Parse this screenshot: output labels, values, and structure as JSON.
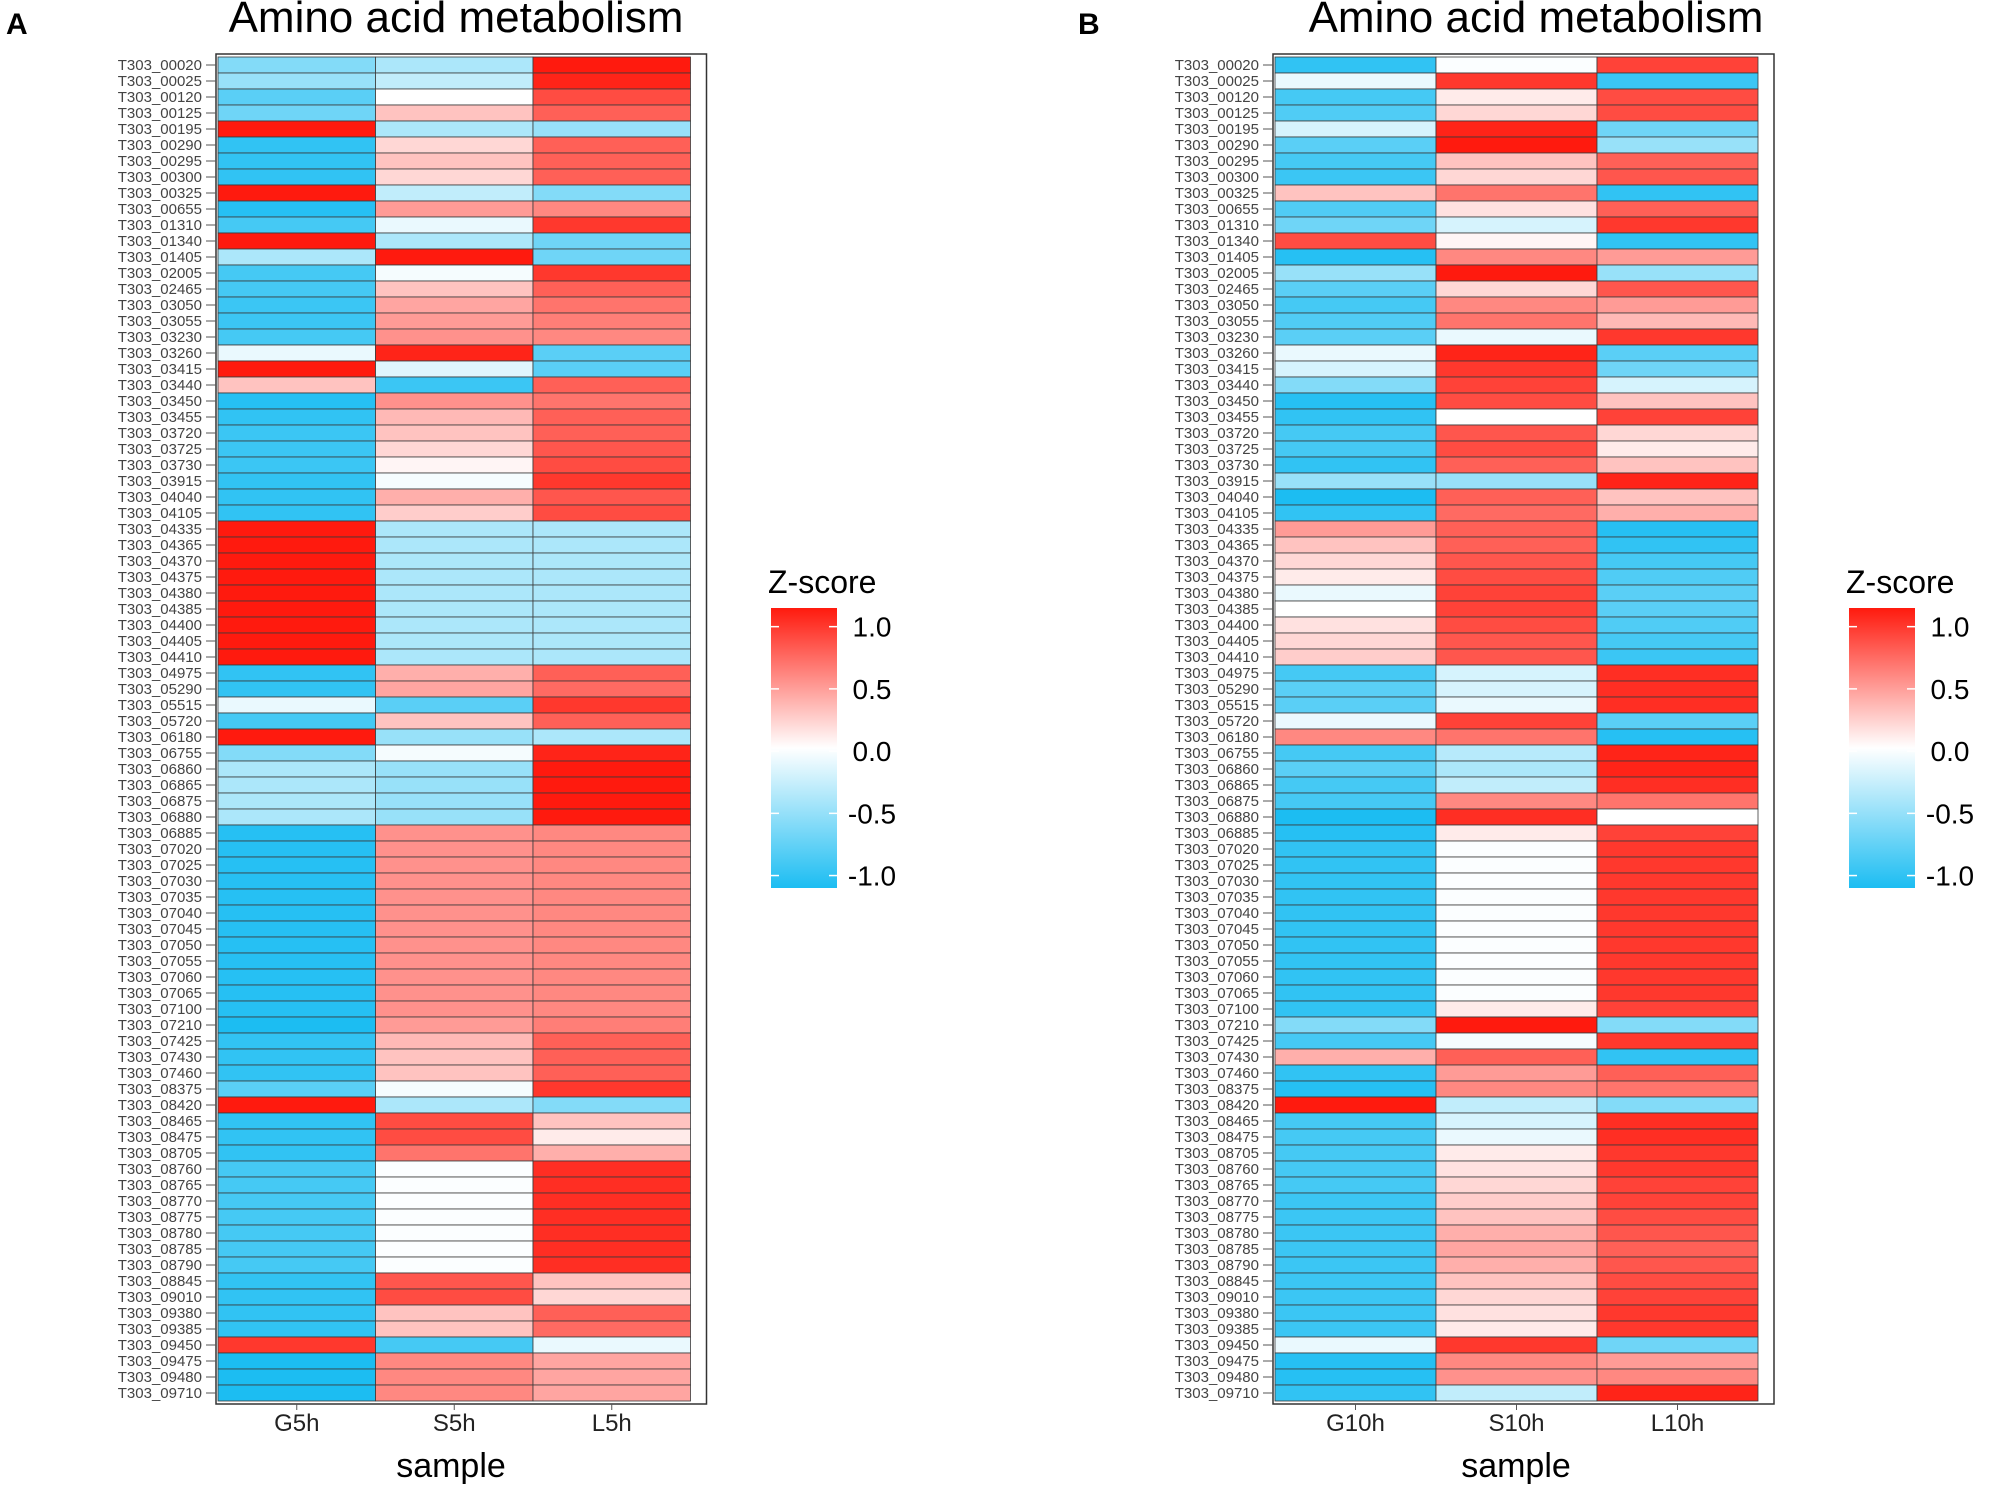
{
  "chart_data": [
    {
      "type": "heatmap",
      "panel": "A",
      "title": "Amino acid metabolism",
      "xlabel": "sample",
      "columns": [
        "G5h",
        "S5h",
        "L5h"
      ],
      "rows": [
        "T303_00020",
        "T303_00025",
        "T303_00120",
        "T303_00125",
        "T303_00195",
        "T303_00290",
        "T303_00295",
        "T303_00300",
        "T303_00325",
        "T303_00655",
        "T303_01310",
        "T303_01340",
        "T303_01405",
        "T303_02005",
        "T303_02465",
        "T303_03050",
        "T303_03055",
        "T303_03230",
        "T303_03260",
        "T303_03415",
        "T303_03440",
        "T303_03450",
        "T303_03455",
        "T303_03720",
        "T303_03725",
        "T303_03730",
        "T303_03915",
        "T303_04040",
        "T303_04105",
        "T303_04335",
        "T303_04365",
        "T303_04370",
        "T303_04375",
        "T303_04380",
        "T303_04385",
        "T303_04400",
        "T303_04405",
        "T303_04410",
        "T303_04975",
        "T303_05290",
        "T303_05515",
        "T303_05720",
        "T303_06180",
        "T303_06755",
        "T303_06860",
        "T303_06865",
        "T303_06875",
        "T303_06880",
        "T303_06885",
        "T303_07020",
        "T303_07025",
        "T303_07030",
        "T303_07035",
        "T303_07040",
        "T303_07045",
        "T303_07050",
        "T303_07055",
        "T303_07060",
        "T303_07065",
        "T303_07100",
        "T303_07210",
        "T303_07425",
        "T303_07430",
        "T303_07460",
        "T303_08375",
        "T303_08420",
        "T303_08465",
        "T303_08475",
        "T303_08705",
        "T303_08760",
        "T303_08765",
        "T303_08770",
        "T303_08775",
        "T303_08780",
        "T303_08785",
        "T303_08790",
        "T303_08845",
        "T303_09010",
        "T303_09380",
        "T303_09385",
        "T303_09450",
        "T303_09475",
        "T303_09480",
        "T303_09710"
      ],
      "values": [
        [
          -0.6,
          -0.4,
          1.15
        ],
        [
          -0.5,
          -0.3,
          1.1
        ],
        [
          -0.8,
          0.0,
          0.9
        ],
        [
          -0.7,
          0.3,
          0.8
        ],
        [
          1.15,
          -0.4,
          -0.5
        ],
        [
          -1.0,
          0.2,
          0.8
        ],
        [
          -1.0,
          0.3,
          0.8
        ],
        [
          -1.0,
          0.2,
          0.8
        ],
        [
          1.15,
          -0.3,
          -0.6
        ],
        [
          -1.05,
          0.5,
          0.6
        ],
        [
          -0.9,
          -0.1,
          1.0
        ],
        [
          1.15,
          -0.4,
          -0.7
        ],
        [
          -0.4,
          1.15,
          -0.7
        ],
        [
          -0.9,
          -0.05,
          1.0
        ],
        [
          -0.9,
          0.3,
          0.8
        ],
        [
          -0.95,
          0.45,
          0.7
        ],
        [
          -0.95,
          0.5,
          0.65
        ],
        [
          -0.9,
          0.55,
          0.6
        ],
        [
          -0.1,
          1.1,
          -0.8
        ],
        [
          1.15,
          -0.15,
          -0.8
        ],
        [
          0.3,
          -0.95,
          0.8
        ],
        [
          -1.05,
          0.55,
          0.7
        ],
        [
          -1.0,
          0.35,
          0.8
        ],
        [
          -0.95,
          0.3,
          0.8
        ],
        [
          -0.95,
          0.2,
          0.85
        ],
        [
          -0.95,
          0.05,
          0.9
        ],
        [
          -1.0,
          -0.05,
          1.0
        ],
        [
          -1.0,
          0.4,
          0.85
        ],
        [
          -1.0,
          0.25,
          0.9
        ],
        [
          1.15,
          -0.4,
          -0.4
        ],
        [
          1.15,
          -0.4,
          -0.4
        ],
        [
          1.15,
          -0.4,
          -0.4
        ],
        [
          1.15,
          -0.4,
          -0.4
        ],
        [
          1.15,
          -0.4,
          -0.4
        ],
        [
          1.15,
          -0.4,
          -0.4
        ],
        [
          1.15,
          -0.4,
          -0.4
        ],
        [
          1.15,
          -0.4,
          -0.4
        ],
        [
          1.15,
          -0.4,
          -0.4
        ],
        [
          -1.0,
          0.4,
          0.8
        ],
        [
          -1.0,
          0.45,
          0.75
        ],
        [
          -0.1,
          -0.8,
          1.0
        ],
        [
          -0.9,
          0.3,
          0.8
        ],
        [
          1.15,
          -0.5,
          -0.4
        ],
        [
          -0.6,
          -0.05,
          1.1
        ],
        [
          -0.4,
          -0.5,
          1.2
        ],
        [
          -0.4,
          -0.5,
          1.2
        ],
        [
          -0.4,
          -0.5,
          1.2
        ],
        [
          -0.4,
          -0.5,
          1.2
        ],
        [
          -1.05,
          0.55,
          0.6
        ],
        [
          -1.05,
          0.55,
          0.6
        ],
        [
          -1.05,
          0.55,
          0.6
        ],
        [
          -1.05,
          0.55,
          0.6
        ],
        [
          -1.05,
          0.55,
          0.6
        ],
        [
          -1.05,
          0.55,
          0.6
        ],
        [
          -1.05,
          0.55,
          0.6
        ],
        [
          -1.05,
          0.55,
          0.6
        ],
        [
          -1.05,
          0.55,
          0.6
        ],
        [
          -1.05,
          0.55,
          0.6
        ],
        [
          -1.05,
          0.55,
          0.6
        ],
        [
          -1.05,
          0.55,
          0.6
        ],
        [
          -1.1,
          0.5,
          0.65
        ],
        [
          -1.0,
          0.35,
          0.8
        ],
        [
          -1.0,
          0.3,
          0.8
        ],
        [
          -1.0,
          0.3,
          0.8
        ],
        [
          -0.8,
          -0.05,
          1.0
        ],
        [
          1.15,
          -0.4,
          -0.6
        ],
        [
          -1.0,
          0.9,
          0.3
        ],
        [
          -1.0,
          0.9,
          0.1
        ],
        [
          -1.0,
          0.7,
          0.4
        ],
        [
          -0.9,
          -0.02,
          1.05
        ],
        [
          -0.9,
          -0.02,
          1.05
        ],
        [
          -0.9,
          -0.02,
          1.05
        ],
        [
          -0.9,
          -0.02,
          1.05
        ],
        [
          -0.9,
          -0.02,
          1.05
        ],
        [
          -0.9,
          -0.02,
          1.05
        ],
        [
          -0.9,
          -0.02,
          1.05
        ],
        [
          -1.0,
          0.85,
          0.3
        ],
        [
          -1.0,
          0.9,
          0.2
        ],
        [
          -1.0,
          0.3,
          0.8
        ],
        [
          -1.0,
          0.3,
          0.75
        ],
        [
          1.0,
          -0.9,
          -0.1
        ],
        [
          -1.1,
          0.6,
          0.45
        ],
        [
          -1.1,
          0.6,
          0.45
        ],
        [
          -1.1,
          0.6,
          0.45
        ]
      ]
    },
    {
      "type": "heatmap",
      "panel": "B",
      "title": "Amino acid metabolism",
      "xlabel": "sample",
      "columns": [
        "G10h",
        "S10h",
        "L10h"
      ],
      "rows": [
        "T303_00020",
        "T303_00025",
        "T303_00120",
        "T303_00125",
        "T303_00195",
        "T303_00290",
        "T303_00295",
        "T303_00300",
        "T303_00325",
        "T303_00655",
        "T303_01310",
        "T303_01340",
        "T303_01405",
        "T303_02005",
        "T303_02465",
        "T303_03050",
        "T303_03055",
        "T303_03230",
        "T303_03260",
        "T303_03415",
        "T303_03440",
        "T303_03450",
        "T303_03455",
        "T303_03720",
        "T303_03725",
        "T303_03730",
        "T303_03915",
        "T303_04040",
        "T303_04105",
        "T303_04335",
        "T303_04365",
        "T303_04370",
        "T303_04375",
        "T303_04380",
        "T303_04385",
        "T303_04400",
        "T303_04405",
        "T303_04410",
        "T303_04975",
        "T303_05290",
        "T303_05515",
        "T303_05720",
        "T303_06180",
        "T303_06755",
        "T303_06860",
        "T303_06865",
        "T303_06875",
        "T303_06880",
        "T303_06885",
        "T303_07020",
        "T303_07025",
        "T303_07030",
        "T303_07035",
        "T303_07040",
        "T303_07045",
        "T303_07050",
        "T303_07055",
        "T303_07060",
        "T303_07065",
        "T303_07100",
        "T303_07210",
        "T303_07425",
        "T303_07430",
        "T303_07460",
        "T303_08375",
        "T303_08420",
        "T303_08465",
        "T303_08475",
        "T303_08705",
        "T303_08760",
        "T303_08765",
        "T303_08770",
        "T303_08775",
        "T303_08780",
        "T303_08785",
        "T303_08790",
        "T303_08845",
        "T303_09010",
        "T303_09380",
        "T303_09385",
        "T303_09450",
        "T303_09475",
        "T303_09480",
        "T303_09710"
      ],
      "values": [
        [
          -1.0,
          -0.02,
          0.95
        ],
        [
          -0.1,
          1.0,
          -0.95
        ],
        [
          -0.9,
          0.1,
          0.9
        ],
        [
          -0.85,
          0.2,
          0.9
        ],
        [
          -0.2,
          1.1,
          -0.7
        ],
        [
          -0.8,
          1.15,
          -0.5
        ],
        [
          -0.9,
          0.3,
          0.8
        ],
        [
          -0.95,
          0.2,
          0.85
        ],
        [
          0.3,
          0.7,
          -1.0
        ],
        [
          -0.85,
          0.15,
          0.8
        ],
        [
          -0.7,
          -0.2,
          1.0
        ],
        [
          0.9,
          0.05,
          -1.0
        ],
        [
          -1.05,
          0.6,
          0.5
        ],
        [
          -0.5,
          1.15,
          -0.5
        ],
        [
          -0.8,
          0.2,
          0.85
        ],
        [
          -0.9,
          0.6,
          0.5
        ],
        [
          -0.85,
          0.7,
          0.35
        ],
        [
          -0.8,
          -0.1,
          1.0
        ],
        [
          -0.1,
          1.1,
          -0.8
        ],
        [
          -0.2,
          1.0,
          -0.7
        ],
        [
          -0.6,
          0.95,
          -0.2
        ],
        [
          -1.05,
          0.9,
          0.3
        ],
        [
          -1.0,
          0.0,
          0.95
        ],
        [
          -0.9,
          0.85,
          0.2
        ],
        [
          -0.9,
          0.9,
          0.1
        ],
        [
          -1.0,
          0.8,
          0.3
        ],
        [
          -0.5,
          -0.5,
          1.1
        ],
        [
          -1.1,
          0.8,
          0.3
        ],
        [
          -1.0,
          0.75,
          0.4
        ],
        [
          0.5,
          0.8,
          -1.05
        ],
        [
          0.3,
          0.8,
          -1.0
        ],
        [
          0.2,
          0.85,
          -0.9
        ],
        [
          0.1,
          0.9,
          -0.85
        ],
        [
          -0.1,
          0.95,
          -0.8
        ],
        [
          0.0,
          0.95,
          -0.8
        ],
        [
          0.15,
          0.9,
          -0.85
        ],
        [
          0.2,
          0.85,
          -0.9
        ],
        [
          0.25,
          0.85,
          -0.95
        ],
        [
          -0.9,
          -0.2,
          1.05
        ],
        [
          -0.8,
          -0.2,
          1.05
        ],
        [
          -0.8,
          -0.1,
          1.05
        ],
        [
          -0.1,
          0.95,
          -0.8
        ],
        [
          0.6,
          0.7,
          -1.05
        ],
        [
          -0.9,
          -0.35,
          1.1
        ],
        [
          -0.8,
          -0.4,
          1.1
        ],
        [
          -0.9,
          -0.3,
          1.05
        ],
        [
          -0.9,
          0.6,
          0.7
        ],
        [
          -1.1,
          1.05,
          0.0
        ],
        [
          -1.05,
          0.1,
          0.95
        ],
        [
          -1.0,
          -0.02,
          1.0
        ],
        [
          -1.0,
          -0.02,
          1.0
        ],
        [
          -1.0,
          -0.02,
          1.0
        ],
        [
          -1.0,
          -0.02,
          1.0
        ],
        [
          -1.0,
          -0.02,
          1.0
        ],
        [
          -1.0,
          -0.02,
          1.0
        ],
        [
          -1.0,
          -0.02,
          1.0
        ],
        [
          -1.0,
          -0.02,
          1.0
        ],
        [
          -1.0,
          -0.02,
          1.0
        ],
        [
          -1.0,
          -0.02,
          1.0
        ],
        [
          -1.0,
          0.1,
          0.95
        ],
        [
          -0.6,
          1.15,
          -0.6
        ],
        [
          -0.9,
          -0.05,
          1.0
        ],
        [
          0.4,
          0.8,
          -1.0
        ],
        [
          -1.0,
          0.5,
          0.8
        ],
        [
          -1.05,
          0.6,
          0.7
        ],
        [
          1.15,
          -0.3,
          -0.6
        ],
        [
          -0.9,
          -0.2,
          1.05
        ],
        [
          -0.9,
          -0.1,
          1.05
        ],
        [
          -0.9,
          0.1,
          1.0
        ],
        [
          -0.9,
          0.15,
          1.0
        ],
        [
          -0.9,
          0.2,
          0.95
        ],
        [
          -0.95,
          0.25,
          0.95
        ],
        [
          -0.95,
          0.3,
          0.9
        ],
        [
          -0.95,
          0.4,
          0.85
        ],
        [
          -0.95,
          0.45,
          0.8
        ],
        [
          -0.95,
          0.4,
          0.85
        ],
        [
          -0.95,
          0.3,
          0.9
        ],
        [
          -0.95,
          0.2,
          0.95
        ],
        [
          -0.95,
          0.15,
          1.0
        ],
        [
          -0.95,
          0.1,
          1.0
        ],
        [
          -0.1,
          1.0,
          -0.7
        ],
        [
          -1.05,
          0.6,
          0.5
        ],
        [
          -1.05,
          0.55,
          0.6
        ],
        [
          -1.0,
          -0.3,
          1.1
        ]
      ]
    }
  ],
  "panels": [
    {
      "letter": "A",
      "title": "Amino acid metabolism",
      "xlabel": "sample"
    },
    {
      "letter": "B",
      "title": "Amino acid metabolism",
      "xlabel": "sample"
    }
  ],
  "legend": {
    "title": "Z-score",
    "ticks": [
      "1.0",
      "0.5",
      "0.0",
      "-0.5",
      "-1.0"
    ],
    "tick_values": [
      1.0,
      0.5,
      0.0,
      -0.5,
      -1.0
    ],
    "range": [
      -1.1,
      1.15
    ],
    "colors": {
      "low": "#1cbdf2",
      "mid": "#ffffff",
      "high": "#ff1a0e"
    }
  }
}
